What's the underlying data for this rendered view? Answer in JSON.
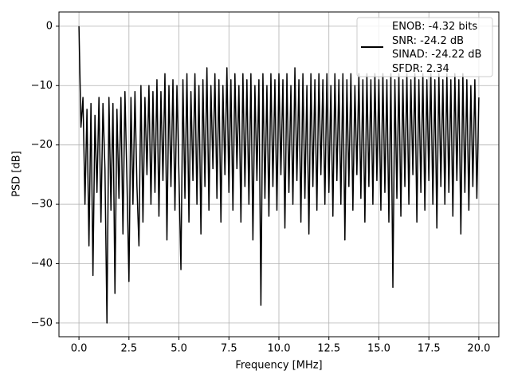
{
  "chart_data": {
    "type": "line",
    "xlabel": "Frequency [MHz]",
    "ylabel": "PSD [dB]",
    "xlim": [
      -1,
      21
    ],
    "ylim": [
      -52.3,
      2.4
    ],
    "xticks": [
      {
        "value": 0,
        "label": "0.0"
      },
      2.5,
      {
        "value": 5,
        "label": "5.0"
      },
      7.5,
      {
        "value": 10,
        "label": "10.0"
      },
      12.5,
      {
        "value": 15,
        "label": "15.0"
      },
      17.5,
      {
        "value": 20,
        "label": "20.0"
      }
    ],
    "yticks": [
      0,
      {
        "value": -10,
        "label": "−10"
      },
      {
        "value": -20,
        "label": "−20"
      },
      {
        "value": -30,
        "label": "−30"
      },
      {
        "value": -40,
        "label": "−40"
      },
      {
        "value": -50,
        "label": "−50"
      }
    ],
    "grid": true,
    "legend": "upper right",
    "x": [
      0.0,
      0.1,
      0.2,
      0.3,
      0.4,
      0.5,
      0.6,
      0.7,
      0.8,
      0.9,
      1.0,
      1.1,
      1.2,
      1.3,
      1.4,
      1.5,
      1.6,
      1.7,
      1.8,
      1.9,
      2.0,
      2.1,
      2.2,
      2.3,
      2.4,
      2.5,
      2.6,
      2.7,
      2.8,
      2.9,
      3.0,
      3.1,
      3.2,
      3.3,
      3.4,
      3.5,
      3.6,
      3.7,
      3.8,
      3.9,
      4.0,
      4.1,
      4.2,
      4.3,
      4.4,
      4.5,
      4.6,
      4.7,
      4.8,
      4.9,
      5.0,
      5.1,
      5.2,
      5.3,
      5.4,
      5.5,
      5.6,
      5.7,
      5.8,
      5.9,
      6.0,
      6.1,
      6.2,
      6.3,
      6.4,
      6.5,
      6.6,
      6.7,
      6.8,
      6.9,
      7.0,
      7.1,
      7.2,
      7.3,
      7.4,
      7.5,
      7.6,
      7.7,
      7.8,
      7.9,
      8.0,
      8.1,
      8.2,
      8.3,
      8.4,
      8.5,
      8.6,
      8.7,
      8.8,
      8.9,
      9.0,
      9.1,
      9.2,
      9.3,
      9.4,
      9.5,
      9.6,
      9.7,
      9.8,
      9.9,
      10.0,
      10.1,
      10.2,
      10.3,
      10.4,
      10.5,
      10.6,
      10.7,
      10.8,
      10.9,
      11.0,
      11.1,
      11.2,
      11.3,
      11.4,
      11.5,
      11.6,
      11.7,
      11.8,
      11.9,
      12.0,
      12.1,
      12.2,
      12.3,
      12.4,
      12.5,
      12.6,
      12.7,
      12.8,
      12.9,
      13.0,
      13.1,
      13.2,
      13.3,
      13.4,
      13.5,
      13.6,
      13.7,
      13.8,
      13.9,
      14.0,
      14.1,
      14.2,
      14.3,
      14.4,
      14.5,
      14.6,
      14.7,
      14.8,
      14.9,
      15.0,
      15.1,
      15.2,
      15.3,
      15.4,
      15.5,
      15.6,
      15.7,
      15.8,
      15.9,
      16.0,
      16.1,
      16.2,
      16.3,
      16.4,
      16.5,
      16.6,
      16.7,
      16.8,
      16.9,
      17.0,
      17.1,
      17.2,
      17.3,
      17.4,
      17.5,
      17.6,
      17.7,
      17.8,
      17.9,
      18.0,
      18.1,
      18.2,
      18.3,
      18.4,
      18.5,
      18.6,
      18.7,
      18.8,
      18.9,
      19.0,
      19.1,
      19.2,
      19.3,
      19.4,
      19.5,
      19.6,
      19.7,
      19.8,
      19.9,
      20.0
    ],
    "series": [
      {
        "name": "ENOB: -4.32 bits\nSNR: -24.2 dB\nSINAD: -24.22 dB\nSFDR: 2.34",
        "color": "#000000",
        "values": [
          0,
          -17,
          -12,
          -30,
          -14,
          -37,
          -13,
          -42,
          -15,
          -28,
          -12,
          -33,
          -13,
          -24,
          -50,
          -12,
          -31,
          -13,
          -45,
          -14,
          -29,
          -12,
          -35,
          -11,
          -26,
          -43,
          -12,
          -30,
          -11,
          -27,
          -37,
          -10,
          -33,
          -12,
          -25,
          -10,
          -30,
          -11,
          -28,
          -9,
          -32,
          -11,
          -26,
          -8,
          -36,
          -10,
          -27,
          -9,
          -31,
          -10,
          -25,
          -41,
          -9,
          -29,
          -8,
          -33,
          -11,
          -26,
          -8,
          -30,
          -10,
          -35,
          -9,
          -27,
          -7,
          -31,
          -10,
          -24,
          -8,
          -29,
          -9,
          -33,
          -10,
          -25,
          -7,
          -28,
          -9,
          -31,
          -8,
          -24,
          -10,
          -33,
          -8,
          -27,
          -9,
          -30,
          -8,
          -36,
          -10,
          -26,
          -9,
          -47,
          -8,
          -29,
          -10,
          -32,
          -8,
          -27,
          -9,
          -31,
          -8,
          -25,
          -9,
          -34,
          -8,
          -28,
          -10,
          -30,
          -7,
          -26,
          -9,
          -33,
          -8,
          -29,
          -10,
          -35,
          -8,
          -27,
          -9,
          -31,
          -8,
          -25,
          -9,
          -30,
          -8,
          -28,
          -10,
          -32,
          -8,
          -26,
          -9,
          -30,
          -8,
          -36,
          -9,
          -27,
          -8,
          -31,
          -10,
          -25,
          -8,
          -29,
          -9,
          -33,
          -8,
          -27,
          -9,
          -30,
          -8,
          -26,
          -9,
          -31,
          -8,
          -28,
          -9,
          -33,
          -8,
          -44,
          -9,
          -29,
          -8,
          -32,
          -9,
          -27,
          -8,
          -30,
          -9,
          -25,
          -8,
          -33,
          -9,
          -28,
          -8,
          -31,
          -9,
          -26,
          -8,
          -30,
          -9,
          -34,
          -8,
          -27,
          -9,
          -30,
          -8,
          -28,
          -9,
          -32,
          -8,
          -26,
          -9,
          -35,
          -8,
          -28,
          -9,
          -31,
          -10,
          -27,
          -9,
          -29,
          -12
        ]
      }
    ]
  }
}
